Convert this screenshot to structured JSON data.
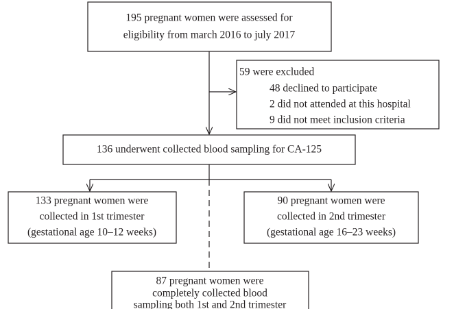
{
  "nodes": [
    {
      "lines": [
        "195 pregnant women were assessed for",
        "eligibility from march 2016 to july 2017"
      ]
    },
    {
      "title": "59 were excluded",
      "items": [
        "48 declined to participate",
        "2 did not attended at this hospital",
        "9 did not meet inclusion criteria"
      ]
    },
    {
      "lines": [
        "136 underwent collected blood sampling for CA-125"
      ]
    },
    {
      "lines": [
        "133 pregnant women were",
        "collected in 1st trimester",
        "(gestational age 10–12 weeks)"
      ]
    },
    {
      "lines": [
        "90 pregnant women were",
        "collected in 2nd trimester",
        "(gestational age 16–23 weeks)"
      ]
    },
    {
      "lines": [
        "87 pregnant women were",
        "completely collected blood",
        "sampling both 1st and 2nd trimester"
      ]
    }
  ]
}
